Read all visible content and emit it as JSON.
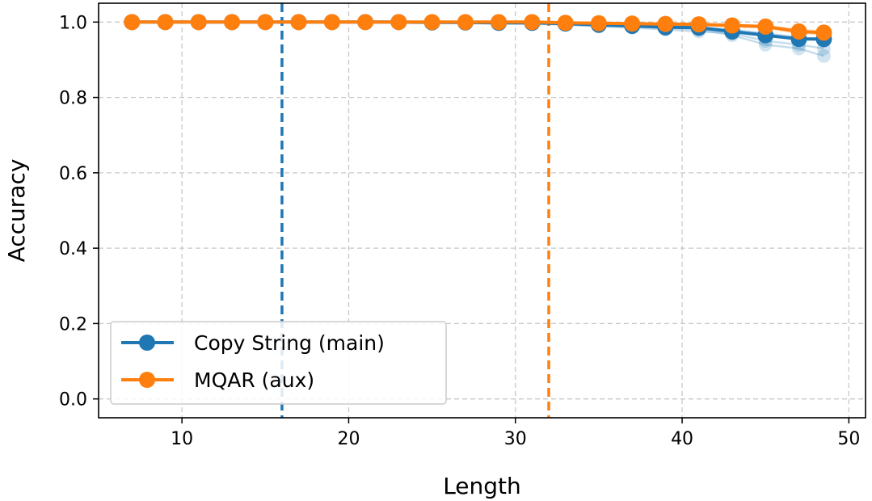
{
  "chart_data": {
    "type": "line",
    "xlabel": "Length",
    "ylabel": "Accuracy",
    "xlim": [
      5,
      51
    ],
    "ylim": [
      -0.05,
      1.05
    ],
    "xticks": [
      10,
      20,
      30,
      40,
      50
    ],
    "yticks": [
      0.0,
      0.2,
      0.4,
      0.6,
      0.8,
      1.0
    ],
    "xtick_labels": [
      "10",
      "20",
      "30",
      "40",
      "50"
    ],
    "ytick_labels": [
      "0.0",
      "0.2",
      "0.4",
      "0.6",
      "0.8",
      "1.0"
    ],
    "grid": true,
    "legend_position": "lower-left",
    "x": [
      7,
      9,
      11,
      13,
      15,
      17,
      19,
      21,
      23,
      25,
      27,
      29,
      31,
      33,
      35,
      37,
      39,
      41,
      43,
      45,
      47,
      48.5
    ],
    "series": [
      {
        "name": "Copy String (main)",
        "color": "#1f77b4",
        "values": [
          1.0,
          1.0,
          1.0,
          1.0,
          1.0,
          1.0,
          1.0,
          1.0,
          1.0,
          0.999,
          0.999,
          0.998,
          0.998,
          0.996,
          0.993,
          0.99,
          0.986,
          0.985,
          0.975,
          0.965,
          0.955,
          0.955
        ],
        "faint_runs": [
          [
            1.0,
            1.0,
            1.0,
            1.0,
            1.0,
            1.0,
            1.0,
            1.0,
            1.0,
            0.998,
            0.998,
            0.997,
            0.997,
            0.994,
            0.99,
            0.988,
            0.985,
            0.98,
            0.965,
            0.94,
            0.93,
            0.91
          ],
          [
            1.0,
            1.0,
            1.0,
            1.0,
            1.0,
            1.0,
            1.0,
            0.999,
            0.999,
            0.998,
            0.997,
            0.996,
            0.995,
            0.993,
            0.988,
            0.985,
            0.98,
            0.975,
            0.97,
            0.95,
            0.94,
            0.93
          ],
          [
            1.0,
            1.0,
            1.0,
            1.0,
            1.0,
            1.0,
            1.0,
            1.0,
            1.0,
            0.999,
            0.999,
            0.998,
            0.997,
            0.995,
            0.992,
            0.99,
            0.99,
            0.987,
            0.98,
            0.97,
            0.96,
            0.95
          ]
        ]
      },
      {
        "name": "MQAR (aux)",
        "color": "#ff7f0e",
        "values": [
          1.0,
          1.0,
          1.0,
          1.0,
          1.0,
          1.0,
          1.0,
          1.0,
          1.0,
          1.0,
          1.0,
          1.0,
          1.0,
          0.998,
          0.997,
          0.996,
          0.995,
          0.994,
          0.991,
          0.988,
          0.975,
          0.972
        ],
        "faint_runs": [
          [
            1.0,
            1.0,
            1.0,
            1.0,
            1.0,
            1.0,
            1.0,
            1.0,
            1.0,
            1.0,
            1.0,
            1.0,
            1.0,
            0.999,
            0.998,
            0.997,
            0.996,
            0.995,
            0.992,
            0.99,
            0.98,
            0.975
          ],
          [
            1.0,
            1.0,
            1.0,
            1.0,
            1.0,
            1.0,
            1.0,
            1.0,
            1.0,
            1.0,
            1.0,
            1.0,
            0.999,
            0.998,
            0.996,
            0.995,
            0.993,
            0.992,
            0.988,
            0.985,
            0.97,
            0.968
          ]
        ]
      }
    ],
    "vlines": [
      {
        "x": 16,
        "color": "#1f77b4",
        "style": "dashed"
      },
      {
        "x": 32,
        "color": "#ff7f0e",
        "style": "dashed"
      }
    ]
  }
}
